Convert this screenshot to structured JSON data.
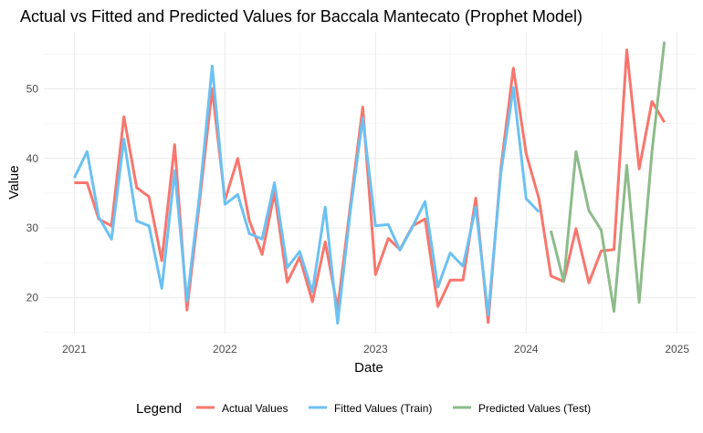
{
  "chart_data": {
    "type": "line",
    "title": "Actual vs Fitted and Predicted Values for Baccala Mantecato (Prophet Model)",
    "xlabel": "Date",
    "ylabel": "Value",
    "xlim": [
      "2020-10-19",
      "2025-02-15"
    ],
    "ylim": [
      14.8,
      58.2
    ],
    "x_ticks": [
      {
        "label": "2021",
        "date": "2021-01-01"
      },
      {
        "label": "2022",
        "date": "2022-01-01"
      },
      {
        "label": "2023",
        "date": "2023-01-01"
      },
      {
        "label": "2024",
        "date": "2024-01-01"
      },
      {
        "label": "2025",
        "date": "2025-01-01"
      }
    ],
    "y_ticks": [
      20,
      30,
      40,
      50
    ],
    "grid": true,
    "legend": {
      "title": "Legend",
      "position": "bottom"
    },
    "series": [
      {
        "name": "Actual Values",
        "color": "#F8766D",
        "x": [
          "2021-01-01",
          "2021-02-01",
          "2021-03-01",
          "2021-04-01",
          "2021-05-01",
          "2021-06-01",
          "2021-07-01",
          "2021-08-01",
          "2021-09-01",
          "2021-10-01",
          "2021-11-01",
          "2021-12-01",
          "2022-01-01",
          "2022-02-01",
          "2022-03-01",
          "2022-04-01",
          "2022-05-01",
          "2022-06-01",
          "2022-07-01",
          "2022-08-01",
          "2022-09-01",
          "2022-10-01",
          "2022-11-01",
          "2022-12-01",
          "2023-01-01",
          "2023-02-01",
          "2023-03-01",
          "2023-04-01",
          "2023-05-01",
          "2023-06-01",
          "2023-07-01",
          "2023-08-01",
          "2023-09-01",
          "2023-10-01",
          "2023-11-01",
          "2023-12-01",
          "2024-01-01",
          "2024-02-01",
          "2024-03-01",
          "2024-04-01",
          "2024-05-01",
          "2024-06-01",
          "2024-07-01",
          "2024-08-01",
          "2024-09-01",
          "2024-10-01",
          "2024-11-01",
          "2024-12-01"
        ],
        "values": [
          36.5,
          36.5,
          31.3,
          30.3,
          46.0,
          35.8,
          34.5,
          25.3,
          42.0,
          18.2,
          34.0,
          50.0,
          34.0,
          40.0,
          31.1,
          26.2,
          35.1,
          22.2,
          25.8,
          19.4,
          28.0,
          18.4,
          33.3,
          47.4,
          23.3,
          28.5,
          26.9,
          30.3,
          31.3,
          18.7,
          22.5,
          22.5,
          34.3,
          16.4,
          38.7,
          53.0,
          40.7,
          34.2,
          23.1,
          22.3,
          29.9,
          22.1,
          26.7,
          26.9,
          55.6,
          38.5,
          48.2,
          45.2
        ]
      },
      {
        "name": "Fitted Values (Train)",
        "color": "#6BC1F2",
        "x": [
          "2021-01-01",
          "2021-02-01",
          "2021-03-01",
          "2021-04-01",
          "2021-05-01",
          "2021-06-01",
          "2021-07-01",
          "2021-08-01",
          "2021-09-01",
          "2021-10-01",
          "2021-11-01",
          "2021-12-01",
          "2022-01-01",
          "2022-02-01",
          "2022-03-01",
          "2022-04-01",
          "2022-05-01",
          "2022-06-01",
          "2022-07-01",
          "2022-08-01",
          "2022-09-01",
          "2022-10-01",
          "2022-11-01",
          "2022-12-01",
          "2023-01-01",
          "2023-02-01",
          "2023-03-01",
          "2023-04-01",
          "2023-05-01",
          "2023-06-01",
          "2023-07-01",
          "2023-08-01",
          "2023-09-01",
          "2023-10-01",
          "2023-11-01",
          "2023-12-01",
          "2024-01-01",
          "2024-02-01"
        ],
        "values": [
          37.2,
          41.0,
          31.6,
          28.4,
          42.8,
          31.0,
          30.3,
          21.3,
          38.2,
          19.5,
          35.0,
          53.3,
          33.4,
          34.8,
          29.2,
          28.4,
          36.5,
          24.3,
          26.6,
          20.8,
          33.0,
          16.3,
          32.5,
          45.8,
          30.3,
          30.5,
          26.8,
          30.2,
          33.8,
          21.5,
          26.4,
          24.5,
          33.0,
          17.5,
          38.0,
          50.2,
          34.2,
          32.3
        ]
      },
      {
        "name": "Predicted Values (Test)",
        "color": "#8DBB8A",
        "x": [
          "2024-03-01",
          "2024-04-01",
          "2024-05-01",
          "2024-06-01",
          "2024-07-01",
          "2024-08-01",
          "2024-09-01",
          "2024-10-01",
          "2024-11-01",
          "2024-12-01"
        ],
        "values": [
          29.6,
          22.3,
          41.0,
          32.5,
          29.7,
          18.0,
          39.0,
          19.3,
          41.0,
          56.8
        ]
      }
    ]
  }
}
